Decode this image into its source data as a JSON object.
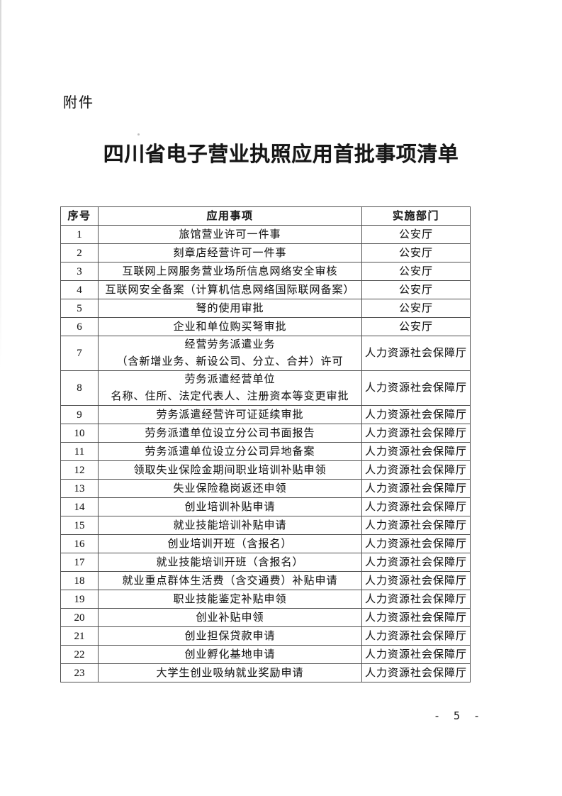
{
  "page": {
    "attachment_label": "附件",
    "title": "四川省电子营业执照应用首批事项清单",
    "page_number": "- 5 -"
  },
  "table": {
    "headers": [
      "序号",
      "应用事项",
      "实施部门"
    ],
    "rows": [
      {
        "no": "1",
        "item": "旅馆营业许可一件事",
        "dept": "公安厅"
      },
      {
        "no": "2",
        "item": "刻章店经营许可一件事",
        "dept": "公安厅"
      },
      {
        "no": "3",
        "item": "互联网上网服务营业场所信息网络安全审核",
        "dept": "公安厅"
      },
      {
        "no": "4",
        "item": "互联网安全备案（计算机信息网络国际联网备案）",
        "dept": "公安厅"
      },
      {
        "no": "5",
        "item": "弩的使用审批",
        "dept": "公安厅"
      },
      {
        "no": "6",
        "item": "企业和单位购买弩审批",
        "dept": "公安厅"
      },
      {
        "no": "7",
        "item": "经营劳务派遣业务\n（含新增业务、新设公司、分立、合并）许可",
        "dept": "人力资源社会保障厅"
      },
      {
        "no": "8",
        "item": "劳务派遣经营单位\n名称、住所、法定代表人、注册资本等变更审批",
        "dept": "人力资源社会保障厅"
      },
      {
        "no": "9",
        "item": "劳务派遣经营许可证延续审批",
        "dept": "人力资源社会保障厅"
      },
      {
        "no": "10",
        "item": "劳务派遣单位设立分公司书面报告",
        "dept": "人力资源社会保障厅"
      },
      {
        "no": "11",
        "item": "劳务派遣单位设立分公司异地备案",
        "dept": "人力资源社会保障厅"
      },
      {
        "no": "12",
        "item": "领取失业保险金期间职业培训补贴申领",
        "dept": "人力资源社会保障厅"
      },
      {
        "no": "13",
        "item": "失业保险稳岗返还申领",
        "dept": "人力资源社会保障厅"
      },
      {
        "no": "14",
        "item": "创业培训补贴申请",
        "dept": "人力资源社会保障厅"
      },
      {
        "no": "15",
        "item": "就业技能培训补贴申请",
        "dept": "人力资源社会保障厅"
      },
      {
        "no": "16",
        "item": "创业培训开班（含报名）",
        "dept": "人力资源社会保障厅"
      },
      {
        "no": "17",
        "item": "就业技能培训开班（含报名）",
        "dept": "人力资源社会保障厅"
      },
      {
        "no": "18",
        "item": "就业重点群体生活费（含交通费）补贴申请",
        "dept": "人力资源社会保障厅"
      },
      {
        "no": "19",
        "item": "职业技能鉴定补贴申领",
        "dept": "人力资源社会保障厅"
      },
      {
        "no": "20",
        "item": "创业补贴申领",
        "dept": "人力资源社会保障厅"
      },
      {
        "no": "21",
        "item": "创业担保贷款申请",
        "dept": "人力资源社会保障厅"
      },
      {
        "no": "22",
        "item": "创业孵化基地申请",
        "dept": "人力资源社会保障厅"
      },
      {
        "no": "23",
        "item": "大学生创业吸纳就业奖励申请",
        "dept": "人力资源社会保障厅"
      }
    ]
  }
}
